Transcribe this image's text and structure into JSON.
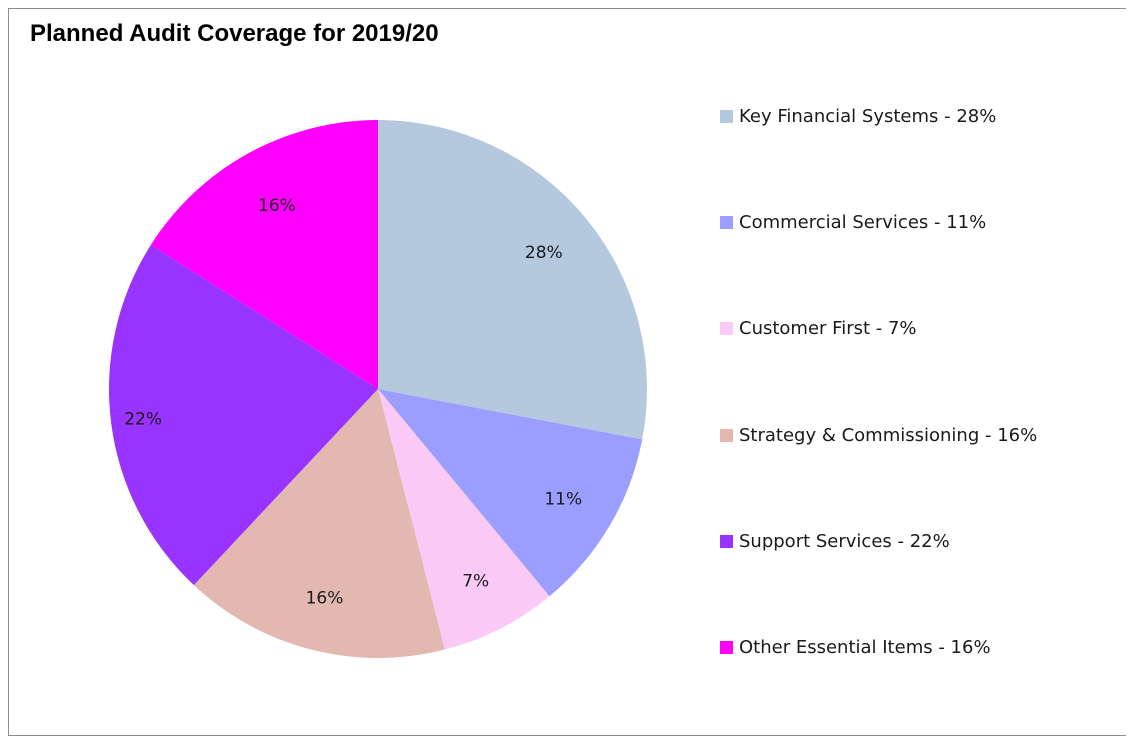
{
  "chart_data": {
    "type": "pie",
    "title": "Planned Audit Coverage for 2019/20",
    "slices": [
      {
        "name": "Key Financial Systems",
        "value": 28,
        "label": "28%",
        "legend": "Key Financial Systems  -  28%",
        "color": "#b4c9de"
      },
      {
        "name": "Commercial Services",
        "value": 11,
        "label": "11%",
        "legend": "Commercial Services  -  11%",
        "color": "#9b9eff"
      },
      {
        "name": "Customer First",
        "value": 7,
        "label": "7%",
        "legend": "Customer First  -  7%",
        "color": "#fbc9f6"
      },
      {
        "name": "Strategy & Commissioning",
        "value": 16,
        "label": "16%",
        "legend": "Strategy & Commissioning - 16%",
        "color": "#e3b8b1"
      },
      {
        "name": "Support Services",
        "value": 22,
        "label": "22%",
        "legend": "Support Services  -  22%",
        "color": "#9933ff"
      },
      {
        "name": "Other Essential Items",
        "value": 16,
        "label": "16%",
        "legend": "Other Essential Items  -  16%",
        "color": "#ff00ff"
      }
    ],
    "legend_position": "right"
  }
}
